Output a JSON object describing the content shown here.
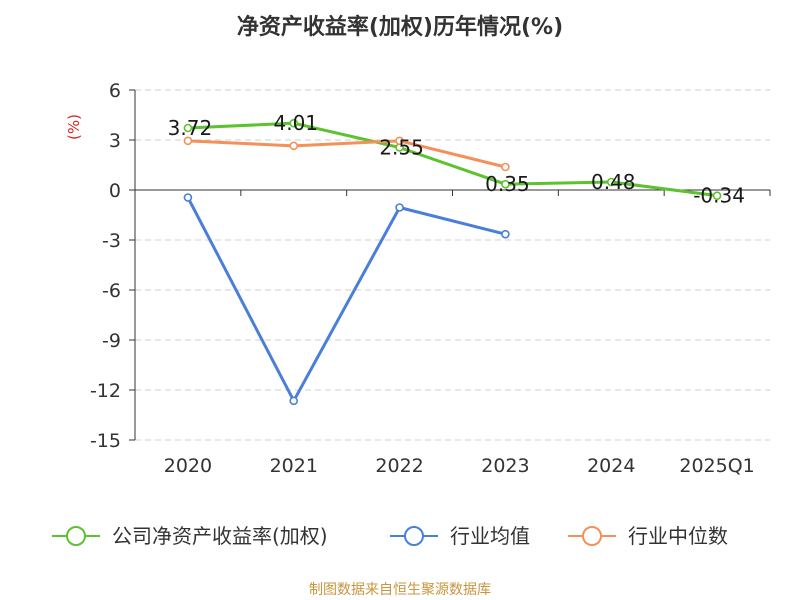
{
  "chart_data": {
    "type": "line",
    "title": "净资产收益率(加权)历年情况(%)",
    "ylabel": "(%)",
    "xlabel": "",
    "categories": [
      "2020",
      "2021",
      "2022",
      "2023",
      "2024",
      "2025Q1"
    ],
    "ylim": [
      -15,
      6
    ],
    "yticks": [
      6,
      3,
      0,
      -3,
      -6,
      -9,
      -12,
      -15
    ],
    "grid": true,
    "legend_position": "bottom",
    "series": [
      {
        "name": "公司净资产收益率(加权)",
        "color": "#5cc22e",
        "values": [
          3.72,
          4.01,
          2.55,
          0.35,
          0.48,
          -0.34
        ],
        "labels": [
          "3.72",
          "4.01",
          "2.55",
          "0.35",
          "0.48",
          "-0.34"
        ]
      },
      {
        "name": "行业均值",
        "color": "#4a7fd9",
        "values": [
          -0.45,
          -12.65,
          -1.05,
          -2.65,
          null,
          null
        ]
      },
      {
        "name": "行业中位数",
        "color": "#f4905a",
        "values": [
          2.95,
          2.65,
          2.95,
          1.38,
          null,
          null
        ]
      }
    ]
  },
  "source": "制图数据来自恒生聚源数据库"
}
